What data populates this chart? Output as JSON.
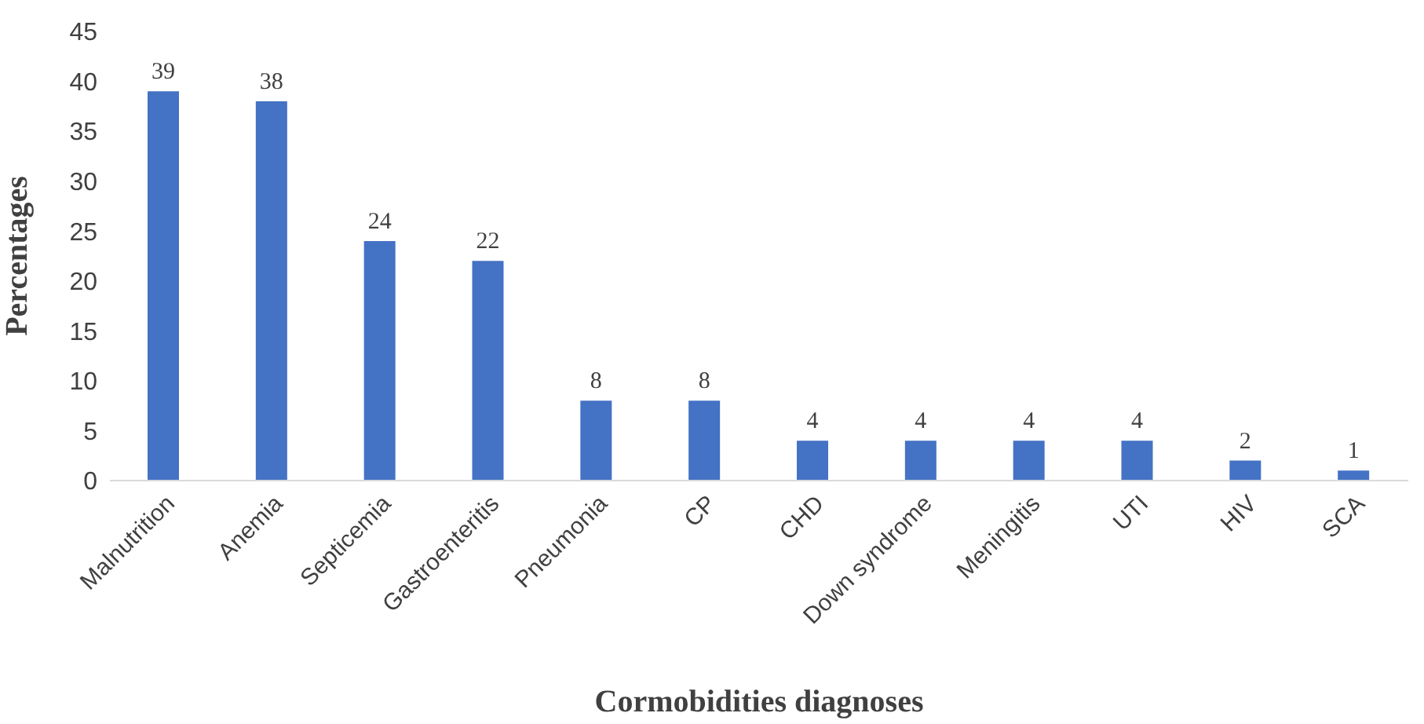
{
  "chart_data": {
    "type": "bar",
    "xlabel": "Cormobidities diagnoses",
    "ylabel": "Percentages",
    "categories": [
      "Malnutrition",
      "Anemia",
      "Septicemia",
      "Gastroenteritis",
      "Pneumonia",
      "CP",
      "CHD",
      "Down syndrome",
      "Meningitis",
      "UTI",
      "HIV",
      "SCA"
    ],
    "values": [
      39,
      38,
      24,
      22,
      8,
      8,
      4,
      4,
      4,
      4,
      2,
      1
    ],
    "color": "#4472c4",
    "ylim": [
      0,
      45
    ],
    "yticks": [
      0,
      5,
      10,
      15,
      20,
      25,
      30,
      35,
      40,
      45
    ],
    "grid": false,
    "data_labels": true
  }
}
